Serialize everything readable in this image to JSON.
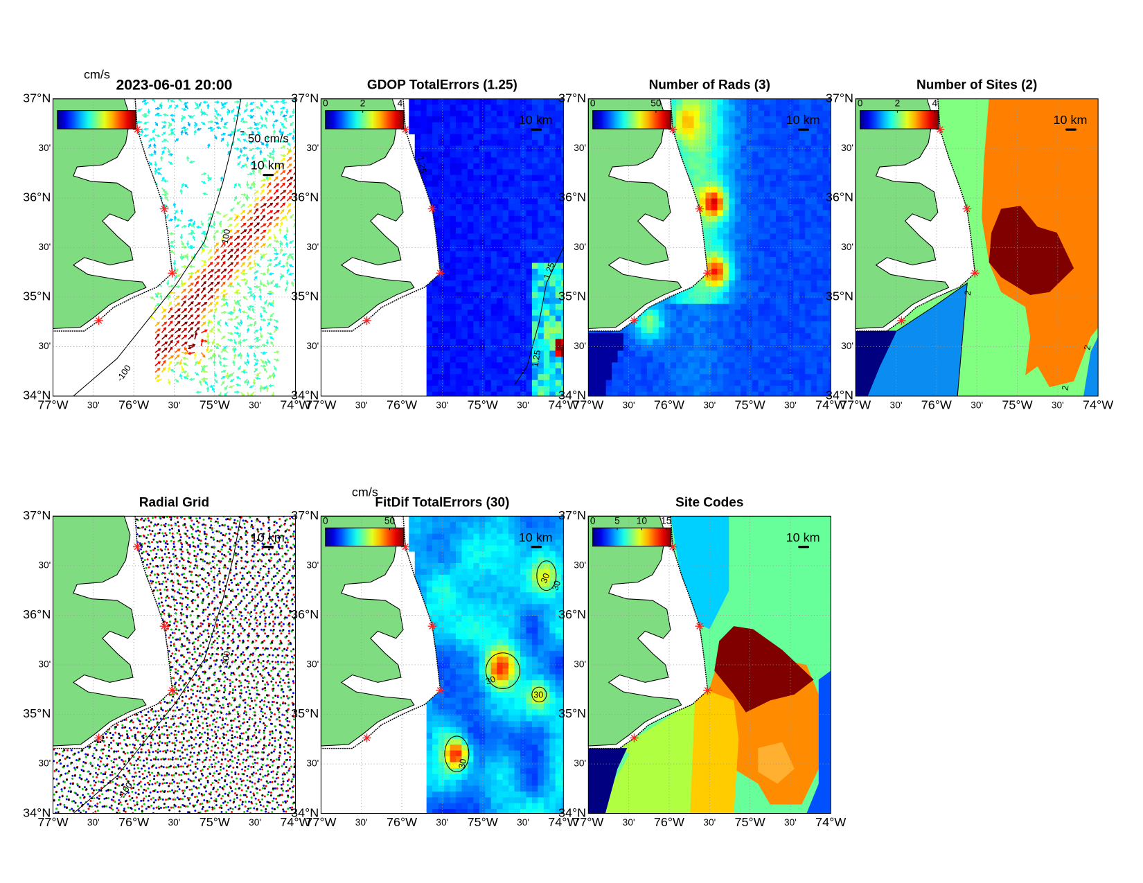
{
  "lat_ticks": [
    {
      "value": 37,
      "label": "37°N"
    },
    {
      "value": 36.5,
      "label": "30'"
    },
    {
      "value": 36,
      "label": "36°N"
    },
    {
      "value": 35.5,
      "label": "30'"
    },
    {
      "value": 35,
      "label": "35°N"
    },
    {
      "value": 34.5,
      "label": "30'"
    },
    {
      "value": 34,
      "label": "34°N"
    }
  ],
  "lon_ticks": [
    {
      "value": -77,
      "label": "77°W"
    },
    {
      "value": -76.5,
      "label": "30'"
    },
    {
      "value": -76,
      "label": "76°W"
    },
    {
      "value": -75.5,
      "label": "30'"
    },
    {
      "value": -75,
      "label": "75°W"
    },
    {
      "value": -74.5,
      "label": "30'"
    },
    {
      "value": -74,
      "label": "74°W"
    }
  ],
  "panels": [
    {
      "title": "2023-06-01 20:00",
      "colorbar_unit": "cm/s",
      "scale_label": "10 km",
      "vector_scale_label": "50 cm/s",
      "contour_labels": [
        "-100",
        "-100"
      ]
    },
    {
      "title": "GDOP TotalErrors (1.25)",
      "colorbar_ticks": [
        0,
        2,
        4
      ],
      "colorbar_lim": [
        0,
        4.2
      ],
      "scale_label": "10 km",
      "contour_labels": [
        "1.25",
        "1.25",
        "1.25"
      ]
    },
    {
      "title": "Number of Rads (3)",
      "colorbar_ticks": [
        0,
        50
      ],
      "colorbar_lim": [
        0,
        62
      ],
      "scale_label": "10 km"
    },
    {
      "title": "Number of Sites (2)",
      "colorbar_ticks": [
        0,
        2,
        4
      ],
      "colorbar_lim": [
        0,
        4.2
      ],
      "scale_label": "10 km",
      "contour_labels": [
        "2",
        "2",
        "2"
      ]
    },
    {
      "title": "Radial Grid",
      "scale_label": "10 km",
      "contour_labels": [
        "-100",
        "-100"
      ]
    },
    {
      "title": "FitDif TotalErrors (30)",
      "colorbar_unit": "cm/s",
      "colorbar_ticks": [
        0,
        50
      ],
      "colorbar_lim": [
        0,
        61
      ],
      "scale_label": "10 km",
      "contour_labels": [
        "30",
        "30",
        "30",
        "30",
        "30"
      ]
    },
    {
      "title": "Site Codes",
      "colorbar_ticks": [
        0,
        5,
        10,
        15
      ],
      "colorbar_lim": [
        0,
        16
      ],
      "scale_label": "10 km"
    }
  ]
}
